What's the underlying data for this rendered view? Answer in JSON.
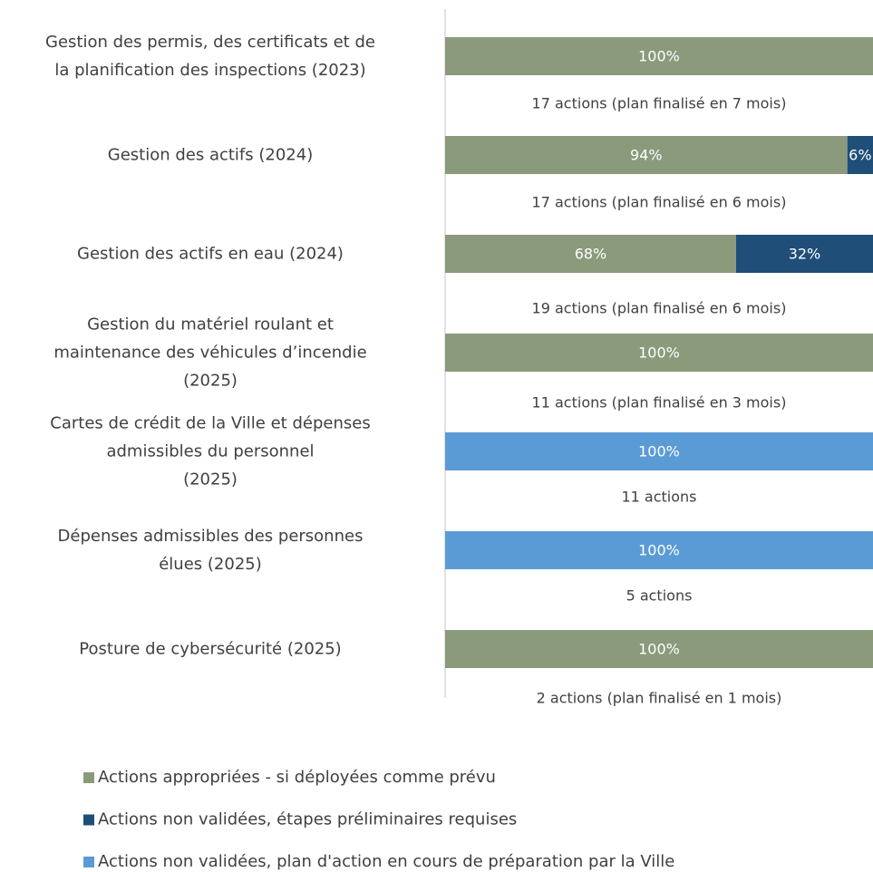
{
  "chart_data": {
    "type": "stacked_barh",
    "categories": [
      "Gestion des permis, des certificats et de\nla planification des inspections (2023)",
      "Gestion des actifs (2024)",
      "Gestion des actifs en eau (2024)",
      "Gestion du matériel roulant et\nmaintenance des véhicules d’incendie\n(2025)",
      "Cartes de crédit de la Ville et dépenses\nadmissibles du personnel\n(2025)",
      "Dépenses admissibles des personnes\nélues (2025)",
      "Posture de cybersécurité (2025)"
    ],
    "annotations": [
      "17 actions (plan finalisé en 7 mois)",
      "17 actions (plan finalisé en 6 mois)",
      "19 actions (plan finalisé en 6 mois)",
      "11 actions (plan finalisé en 3 mois)",
      "11 actions",
      "5 actions",
      "2 actions (plan finalisé en 1 mois)"
    ],
    "series": [
      {
        "name": "Actions appropriées - si déployées comme prévu",
        "color": "#8a9a7b",
        "values": [
          100,
          94,
          68,
          100,
          0,
          0,
          100
        ],
        "value_labels": [
          "100%",
          "94%",
          "68%",
          "100%",
          null,
          null,
          "100%"
        ]
      },
      {
        "name": "Actions non validées, étapes préliminaires requises",
        "color": "#1f4e79",
        "values": [
          0,
          6,
          32,
          0,
          0,
          0,
          0
        ],
        "value_labels": [
          null,
          "6%",
          "32%",
          null,
          null,
          null,
          null
        ]
      },
      {
        "name": "Actions non validées, plan d'action en cours de préparation par la Ville",
        "color": "#5b9bd5",
        "values": [
          0,
          0,
          0,
          0,
          100,
          100,
          0
        ],
        "value_labels": [
          null,
          null,
          null,
          null,
          "100%",
          "100%",
          null
        ]
      }
    ],
    "xlim": [
      0,
      100
    ],
    "legend": "bottom"
  }
}
